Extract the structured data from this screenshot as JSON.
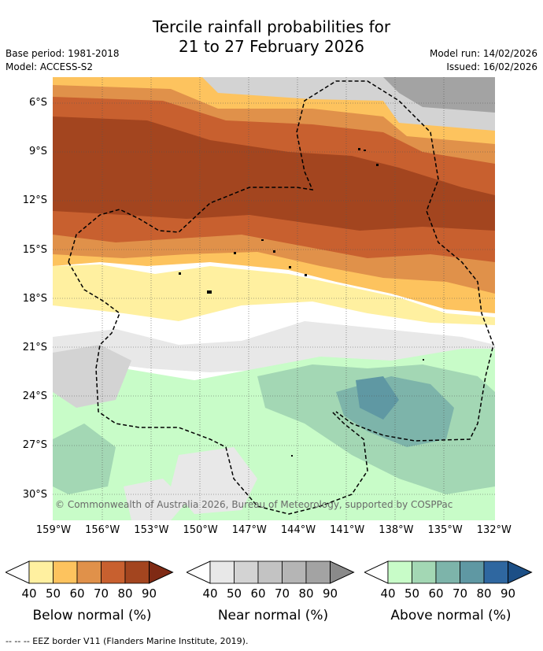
{
  "title_line1": "Tercile rainfall probabilities for",
  "title_line2": "21 to 27 February 2026",
  "base_period": "Base period: 1981-2018",
  "model": "Model: ACCESS-S2",
  "model_run": "Model run: 14/02/2026",
  "issued": "Issued: 16/02/2026",
  "copyright": "© Commonwealth of Australia 2026, Bureau of Meteorology, supported by COSPPac",
  "lat_labels": [
    "6°S",
    "9°S",
    "12°S",
    "15°S",
    "18°S",
    "21°S",
    "24°S",
    "27°S",
    "30°S"
  ],
  "lon_labels": [
    "159°W",
    "156°W",
    "153°W",
    "150°W",
    "147°W",
    "144°W",
    "141°W",
    "138°W",
    "135°W",
    "132°W"
  ],
  "colorbars": [
    {
      "name": "below",
      "title": "Below normal (%)",
      "ticks": [
        "40",
        "50",
        "60",
        "70",
        "80",
        "90"
      ],
      "colors": [
        "#fff0a0",
        "#fdc35e",
        "#e0914a",
        "#c8602f",
        "#a3451f",
        "#7f2a14"
      ]
    },
    {
      "name": "near",
      "title": "Near normal (%)",
      "ticks": [
        "40",
        "50",
        "60",
        "70",
        "80",
        "90"
      ],
      "colors": [
        "#e8e8e8",
        "#d3d3d3",
        "#c3c3c3",
        "#b5b5b5",
        "#a3a3a3",
        "#8a8a8a"
      ]
    },
    {
      "name": "above",
      "title": "Above normal (%)",
      "ticks": [
        "40",
        "50",
        "60",
        "70",
        "80",
        "90"
      ],
      "colors": [
        "#c8fcc8",
        "#a3d7b4",
        "#7db4aa",
        "#5f98a3",
        "#2f67a0",
        "#1c4f86"
      ]
    }
  ],
  "footer": "--  --  -- EEZ border V11 (Flanders Marine Institute, 2019)."
}
